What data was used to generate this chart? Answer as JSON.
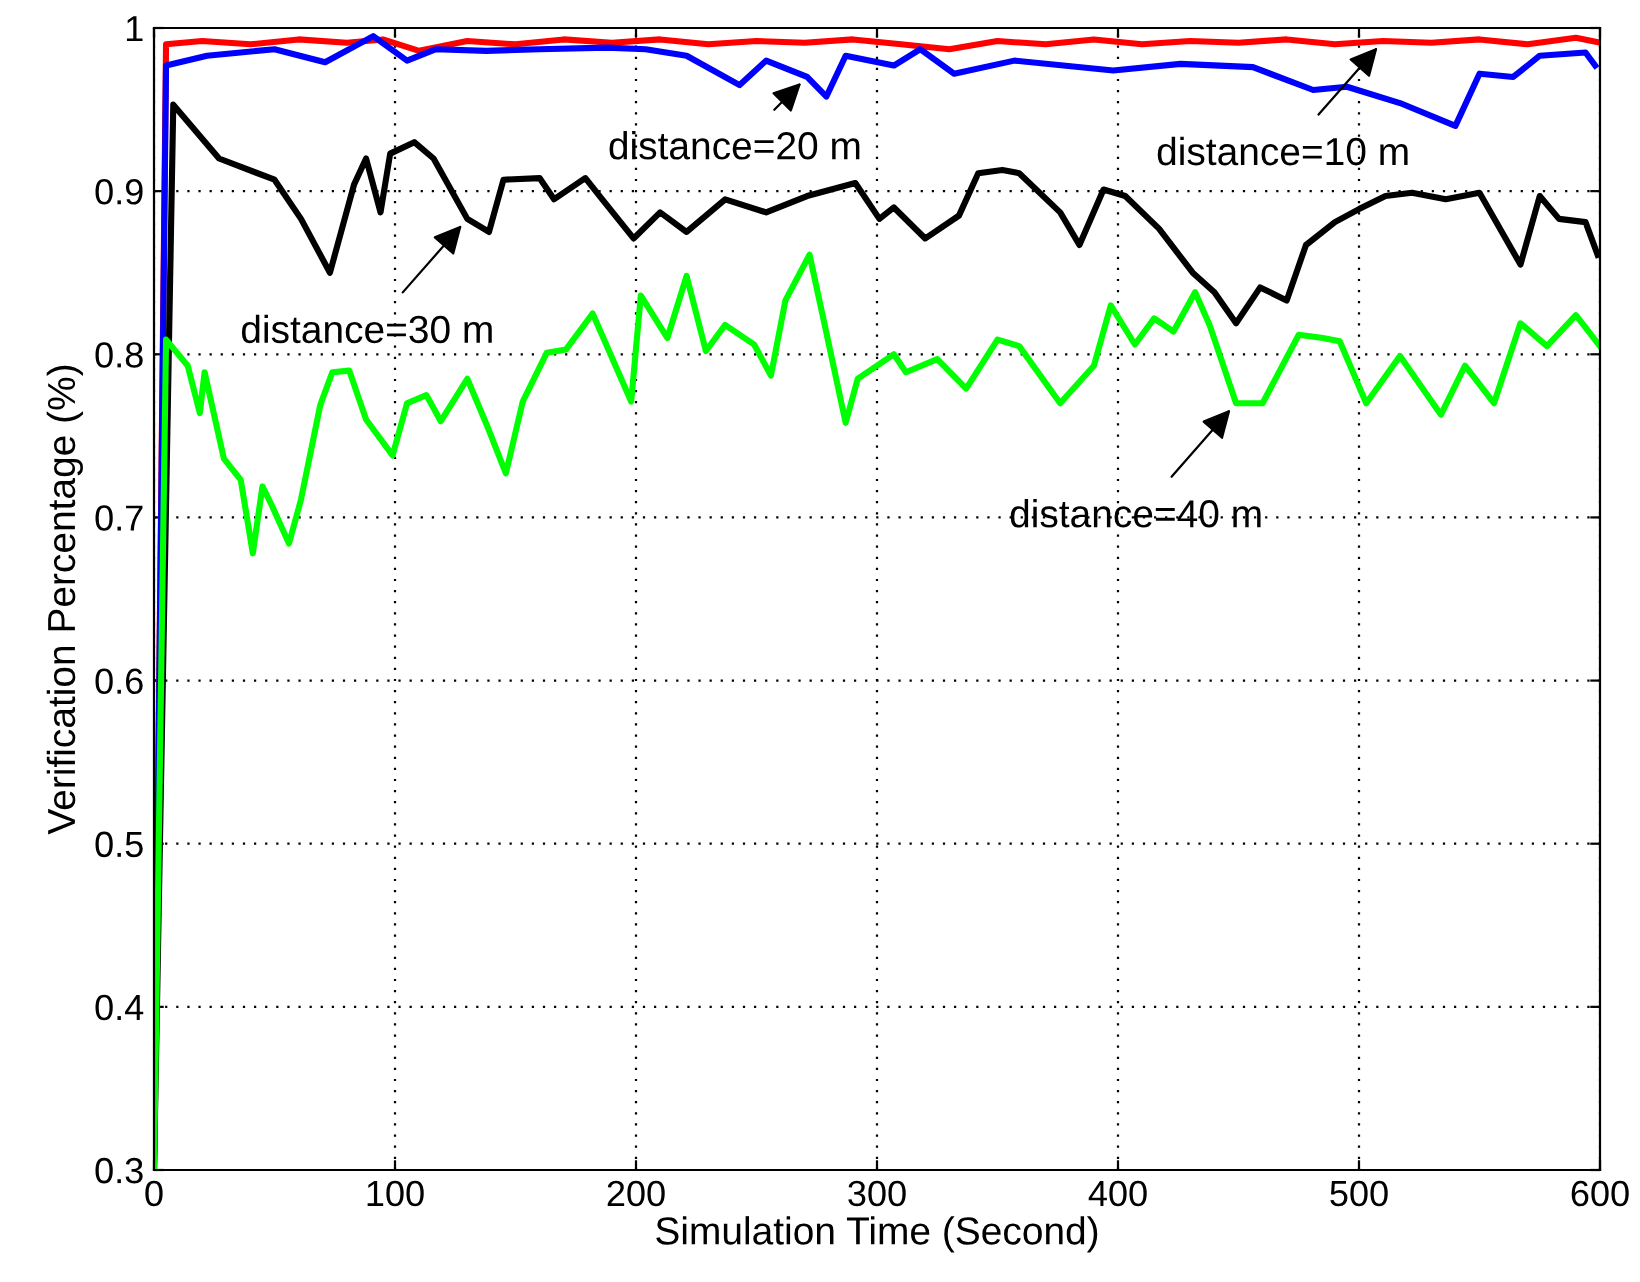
{
  "chart_data": {
    "type": "line",
    "xlabel": "Simulation Time (Second)",
    "ylabel": "Verification Percentage (%)",
    "xlim": [
      0,
      600
    ],
    "ylim": [
      0.3,
      1
    ],
    "xticks": [
      0,
      100,
      200,
      300,
      400,
      500,
      600
    ],
    "yticks": [
      0.3,
      0.4,
      0.5,
      0.6,
      0.7,
      0.8,
      0.9,
      1
    ],
    "grid": true,
    "line_style": "solid",
    "marker": "none",
    "series": [
      {
        "color": "#ff0000",
        "x": [
          0,
          5,
          20,
          40,
          60,
          80,
          95,
          110,
          130,
          150,
          170,
          190,
          210,
          230,
          250,
          270,
          290,
          310,
          330,
          350,
          370,
          390,
          410,
          430,
          450,
          470,
          490,
          510,
          530,
          550,
          570,
          590,
          600
        ],
        "values": [
          0.3,
          0.99,
          0.992,
          0.99,
          0.993,
          0.991,
          0.993,
          0.986,
          0.992,
          0.99,
          0.993,
          0.991,
          0.993,
          0.99,
          0.992,
          0.991,
          0.993,
          0.99,
          0.987,
          0.992,
          0.99,
          0.993,
          0.99,
          0.992,
          0.991,
          0.993,
          0.99,
          0.992,
          0.991,
          0.993,
          0.99,
          0.994,
          0.991
        ]
      },
      {
        "color": "#0000ff",
        "x": [
          0,
          5,
          22,
          50,
          71,
          91,
          105,
          117,
          138,
          160,
          188,
          204,
          221,
          243,
          254,
          271,
          279,
          287,
          307,
          318,
          332,
          357,
          398,
          426,
          456,
          481,
          495,
          517,
          540,
          550,
          564,
          575,
          594,
          598
        ],
        "values": [
          0.3,
          0.977,
          0.983,
          0.987,
          0.979,
          0.995,
          0.98,
          0.987,
          0.986,
          0.987,
          0.988,
          0.987,
          0.983,
          0.965,
          0.98,
          0.97,
          0.958,
          0.983,
          0.977,
          0.987,
          0.972,
          0.98,
          0.974,
          0.978,
          0.976,
          0.962,
          0.964,
          0.954,
          0.94,
          0.972,
          0.97,
          0.983,
          0.985,
          0.977
        ]
      },
      {
        "color": "#000000",
        "x": [
          0,
          8,
          27,
          50,
          61,
          73,
          83,
          88,
          94,
          98,
          108,
          116,
          130,
          139,
          145,
          160,
          166,
          179,
          186,
          199,
          210,
          221,
          237,
          254,
          271,
          291,
          301,
          307,
          320,
          334,
          342,
          352,
          359,
          376,
          384,
          394,
          403,
          417,
          431,
          440,
          449,
          459,
          470,
          478,
          490,
          500,
          511,
          522,
          536,
          550,
          567,
          575,
          583,
          594,
          599
        ],
        "values": [
          0.3,
          0.953,
          0.92,
          0.907,
          0.883,
          0.85,
          0.904,
          0.92,
          0.887,
          0.923,
          0.93,
          0.92,
          0.883,
          0.875,
          0.907,
          0.908,
          0.895,
          0.908,
          0.895,
          0.871,
          0.887,
          0.875,
          0.895,
          0.887,
          0.897,
          0.905,
          0.883,
          0.89,
          0.871,
          0.885,
          0.911,
          0.913,
          0.911,
          0.887,
          0.867,
          0.901,
          0.897,
          0.877,
          0.85,
          0.838,
          0.819,
          0.841,
          0.833,
          0.867,
          0.881,
          0.889,
          0.897,
          0.899,
          0.895,
          0.899,
          0.855,
          0.897,
          0.883,
          0.881,
          0.861
        ]
      },
      {
        "color": "#00ff00",
        "x": [
          0,
          5,
          14,
          19,
          21,
          29,
          36,
          41,
          45,
          49,
          56,
          61,
          69,
          74,
          81,
          88,
          99,
          105,
          113,
          119,
          130,
          138,
          146,
          153,
          163,
          171,
          182,
          198,
          202,
          213,
          221,
          229,
          237,
          249,
          256,
          262,
          272,
          278,
          287,
          292,
          307,
          312,
          325,
          337,
          350,
          359,
          376,
          390,
          397,
          407,
          415,
          423,
          432,
          438,
          449,
          460,
          475,
          485,
          492,
          503,
          517,
          534,
          544,
          556,
          567,
          578,
          590,
          600
        ],
        "values": [
          0.3,
          0.809,
          0.793,
          0.764,
          0.789,
          0.736,
          0.723,
          0.678,
          0.719,
          0.707,
          0.684,
          0.711,
          0.769,
          0.789,
          0.79,
          0.76,
          0.738,
          0.77,
          0.775,
          0.759,
          0.785,
          0.757,
          0.727,
          0.771,
          0.801,
          0.803,
          0.825,
          0.771,
          0.836,
          0.81,
          0.848,
          0.802,
          0.818,
          0.806,
          0.787,
          0.833,
          0.861,
          0.82,
          0.758,
          0.785,
          0.8,
          0.789,
          0.797,
          0.779,
          0.809,
          0.805,
          0.77,
          0.793,
          0.83,
          0.806,
          0.822,
          0.814,
          0.838,
          0.818,
          0.77,
          0.77,
          0.812,
          0.81,
          0.808,
          0.77,
          0.799,
          0.763,
          0.793,
          0.77,
          0.819,
          0.805,
          0.824,
          0.805
        ]
      }
    ],
    "annotations": [
      {
        "text": "distance=20 m",
        "x": 271,
        "y": 0.97
      },
      {
        "text": "distance=10 m",
        "x": 510,
        "y": 0.992
      },
      {
        "text": "distance=30 m",
        "x": 130,
        "y": 0.883
      },
      {
        "text": "distance=40 m",
        "x": 449,
        "y": 0.77
      }
    ]
  }
}
